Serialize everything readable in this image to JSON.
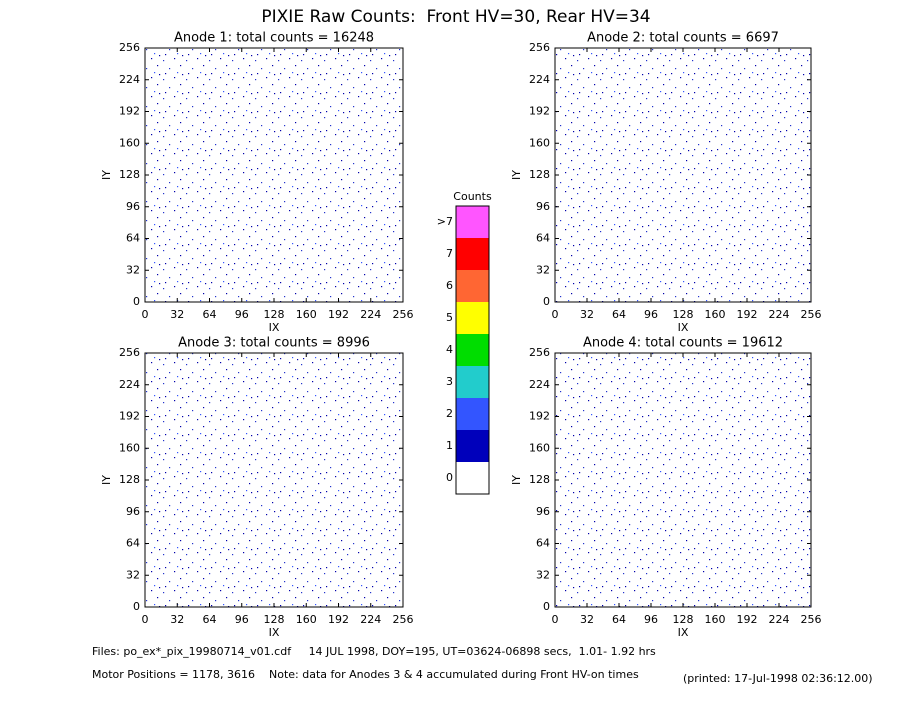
{
  "title": "PIXIE Raw Counts:  Front HV=30, Rear HV=34",
  "chart_data": [
    {
      "type": "heatmap",
      "title": "Anode 1: total counts = 16248",
      "xlabel": "IX",
      "ylabel": "IY",
      "xlim": [
        0,
        256
      ],
      "ylim": [
        0,
        256
      ],
      "xticks": [
        0,
        32,
        64,
        96,
        128,
        160,
        192,
        224,
        256
      ],
      "yticks": [
        0,
        32,
        64,
        96,
        128,
        160,
        192,
        224,
        256
      ]
    },
    {
      "type": "heatmap",
      "title": "Anode 2: total counts = 6697",
      "xlabel": "IX",
      "ylabel": "IY",
      "xlim": [
        0,
        256
      ],
      "ylim": [
        0,
        256
      ],
      "xticks": [
        0,
        32,
        64,
        96,
        128,
        160,
        192,
        224,
        256
      ],
      "yticks": [
        0,
        32,
        64,
        96,
        128,
        160,
        192,
        224,
        256
      ]
    },
    {
      "type": "heatmap",
      "title": "Anode 3: total counts = 8996",
      "xlabel": "IX",
      "ylabel": "IY",
      "xlim": [
        0,
        256
      ],
      "ylim": [
        0,
        256
      ],
      "xticks": [
        0,
        32,
        64,
        96,
        128,
        160,
        192,
        224,
        256
      ],
      "yticks": [
        0,
        32,
        64,
        96,
        128,
        160,
        192,
        224,
        256
      ]
    },
    {
      "type": "heatmap",
      "title": "Anode 4: total counts = 19612",
      "xlabel": "IX",
      "ylabel": "IY",
      "xlim": [
        0,
        256
      ],
      "ylim": [
        0,
        256
      ],
      "xticks": [
        0,
        32,
        64,
        96,
        128,
        160,
        192,
        224,
        256
      ],
      "yticks": [
        0,
        32,
        64,
        96,
        128,
        160,
        192,
        224,
        256
      ]
    }
  ],
  "colorbar": {
    "title": "Counts",
    "levels": [
      {
        "label": ">7",
        "color": "#ff55ff"
      },
      {
        "label": "7",
        "color": "#ff0000"
      },
      {
        "label": "6",
        "color": "#ff6633"
      },
      {
        "label": "5",
        "color": "#ffff00"
      },
      {
        "label": "4",
        "color": "#00dd00"
      },
      {
        "label": "3",
        "color": "#22cccc"
      },
      {
        "label": "2",
        "color": "#3355ff"
      },
      {
        "label": "1",
        "color": "#0000bb"
      },
      {
        "label": "0",
        "color": "#ffffff"
      }
    ]
  },
  "footer": {
    "files": "Files: po_ex*_pix_19980714_v01.cdf     14 JUL 1998, DOY=195, UT=03624-06898 secs,  1.01- 1.92 hrs",
    "motor": "Motor Positions = 1178, 3616    Note: data for Anodes 3 & 4 accumulated during Front HV-on times",
    "printed": "(printed: 17-Jul-1998 02:36:12.00)"
  }
}
